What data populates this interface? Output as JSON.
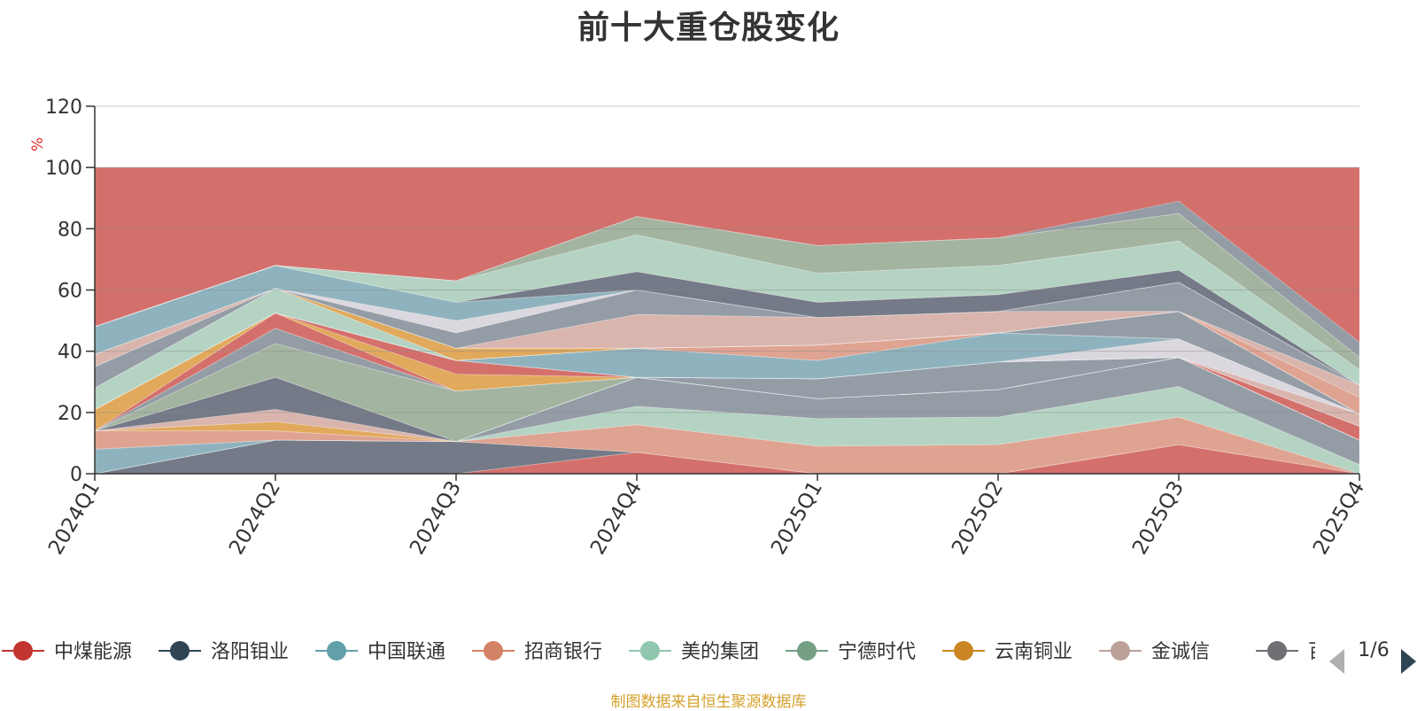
{
  "chart_data": {
    "type": "area",
    "title": "前十大重仓股变化",
    "ylabel": "%",
    "ylim": [
      0,
      120
    ],
    "yticks": [
      0,
      20,
      40,
      60,
      80,
      100,
      120
    ],
    "categories": [
      "2024Q1",
      "2024Q2",
      "2024Q3",
      "2024Q4",
      "2025Q1",
      "2025Q2",
      "2025Q3",
      "2025Q4"
    ],
    "background_band": {
      "from": 0,
      "to": 100,
      "color": "#d4706c"
    },
    "stacked_layers": [
      {
        "color": "#d4706c",
        "values": [
          0,
          0,
          0,
          7,
          0,
          0,
          9.5,
          0
        ]
      },
      {
        "color": "#6d7b89",
        "values": [
          0,
          11,
          10.5,
          0,
          0,
          0,
          0,
          0
        ]
      },
      {
        "color": "#e0a793",
        "values": [
          0,
          0,
          0,
          9,
          9,
          9.5,
          9,
          0
        ]
      },
      {
        "color": "#b1dac9",
        "values": [
          0,
          0,
          0,
          6,
          9,
          9,
          10,
          3
        ]
      },
      {
        "color": "#8fa0aa",
        "values": [
          0,
          0,
          0,
          9.5,
          6.5,
          9,
          9.5,
          8
        ]
      },
      {
        "color": "#8ab8c4",
        "values": [
          8,
          0,
          0,
          0,
          0,
          0,
          0,
          0
        ]
      },
      {
        "color": "#e0a793",
        "values": [
          6,
          3,
          0,
          0,
          0,
          0,
          0,
          0
        ]
      },
      {
        "color": "#e2ad5a",
        "values": [
          0,
          3,
          0,
          0,
          0,
          0,
          0,
          0
        ]
      },
      {
        "color": "#d9bab3",
        "values": [
          0,
          4,
          0,
          0,
          0,
          0,
          0,
          0
        ]
      },
      {
        "color": "#6d7b89",
        "values": [
          0,
          10.5,
          0,
          0,
          0,
          0,
          0,
          0
        ]
      },
      {
        "color": "#9fb9a5",
        "values": [
          0,
          11,
          16.5,
          0,
          0,
          0,
          0,
          0
        ]
      },
      {
        "color": "#8fa0aa",
        "values": [
          0,
          5,
          0,
          0,
          6.5,
          9,
          0,
          0
        ]
      },
      {
        "color": "#d4706c",
        "values": [
          0,
          5,
          0,
          0,
          0,
          0,
          0,
          4.5
        ]
      },
      {
        "color": "#e2ad5a",
        "values": [
          7,
          0,
          5.5,
          0,
          0,
          0,
          0,
          0
        ]
      },
      {
        "color": "#d4706c",
        "values": [
          0,
          0,
          4.5,
          0,
          0,
          0,
          0,
          0
        ]
      },
      {
        "color": "#d9bab3",
        "values": [
          0,
          0,
          0,
          0,
          0,
          0,
          0,
          4
        ]
      },
      {
        "color": "#dcdfe6",
        "values": [
          0,
          0,
          0,
          0,
          0,
          0,
          6,
          0
        ]
      },
      {
        "color": "#8ab8c4",
        "values": [
          0,
          0,
          0,
          9.5,
          6,
          9.5,
          0,
          0
        ]
      },
      {
        "color": "#e0a793",
        "values": [
          0,
          0,
          0,
          0,
          5,
          0,
          0,
          0
        ]
      },
      {
        "color": "#8fa0aa",
        "values": [
          0,
          0,
          0,
          0,
          0,
          0,
          9,
          0
        ]
      },
      {
        "color": "#b1dac9",
        "values": [
          7,
          8,
          0,
          0,
          0,
          0,
          0,
          0
        ]
      },
      {
        "color": "#e2ad5a",
        "values": [
          0,
          0,
          4,
          0,
          0,
          0,
          0,
          0
        ]
      },
      {
        "color": "#8fa0aa",
        "values": [
          7,
          0,
          0,
          0,
          0,
          0,
          0,
          0
        ]
      },
      {
        "color": "#e0a793",
        "values": [
          0,
          0,
          0,
          0,
          0,
          0,
          0,
          5.5
        ]
      },
      {
        "color": "#d9bab3",
        "values": [
          4,
          0,
          0,
          11,
          9,
          7,
          0,
          4
        ]
      },
      {
        "color": "#8fa0aa",
        "values": [
          0,
          0,
          5,
          8,
          0,
          0,
          9.5,
          0
        ]
      },
      {
        "color": "#dcdfe6",
        "values": [
          0,
          0,
          4,
          0,
          0,
          0,
          0,
          0
        ]
      },
      {
        "color": "#8ab8c4",
        "values": [
          9,
          7.5,
          6,
          0,
          0,
          0,
          0,
          0
        ]
      },
      {
        "color": "#6d7b89",
        "values": [
          0,
          0,
          0,
          6,
          5,
          5.5,
          4,
          0
        ]
      },
      {
        "color": "#b1dac9",
        "values": [
          0,
          0,
          7,
          12,
          9.5,
          9.5,
          9.5,
          5
        ]
      },
      {
        "color": "#9fb9a5",
        "values": [
          0,
          0,
          0,
          6,
          9,
          9,
          9,
          4
        ]
      },
      {
        "color": "#8fa0aa",
        "values": [
          0,
          0,
          0,
          0,
          0,
          0,
          4,
          5
        ]
      }
    ],
    "legend": {
      "placement": "bottom",
      "page": "1/6",
      "items": [
        {
          "name": "中煤能源",
          "color": "#c23531"
        },
        {
          "name": "洛阳钼业",
          "color": "#2f4554"
        },
        {
          "name": "中国联通",
          "color": "#61a0a8"
        },
        {
          "name": "招商银行",
          "color": "#d48265"
        },
        {
          "name": "美的集团",
          "color": "#91c7ae"
        },
        {
          "name": "宁德时代",
          "color": "#749f83"
        },
        {
          "name": "云南铜业",
          "color": "#ca8622"
        },
        {
          "name": "金诚信",
          "color": "#bda29a"
        },
        {
          "name": "百洋",
          "color": "#6e7074"
        }
      ]
    }
  },
  "source_note": "制图数据来自恒生聚源数据库"
}
